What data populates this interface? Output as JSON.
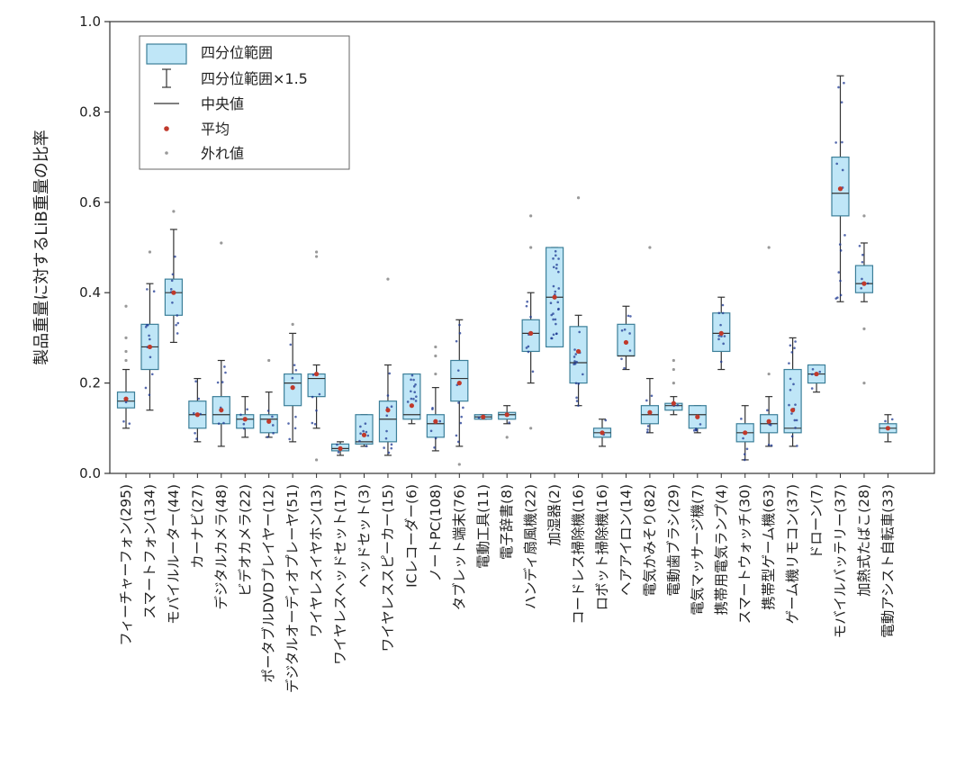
{
  "chart_data": {
    "type": "box",
    "ylabel": "製品重量に対するLiB重量の比率",
    "xlabel": "",
    "ylim": [
      0,
      1.0
    ],
    "yticks": [
      "0.0",
      "0.2",
      "0.4",
      "0.6",
      "0.8",
      "1.0"
    ],
    "grid": false,
    "legend_position": "top-left",
    "legend": [
      {
        "kind": "box",
        "label": "四分位範囲"
      },
      {
        "kind": "whisker",
        "label": "四分位範囲×1.5"
      },
      {
        "kind": "median",
        "label": "中央値"
      },
      {
        "kind": "mean",
        "label": "平均"
      },
      {
        "kind": "outlier",
        "label": "外れ値"
      }
    ],
    "colors": {
      "box_fill": "#bfe6f7",
      "box_edge": "#3c7f99",
      "mean": "#c0392b",
      "points": "#1f3a93",
      "outlier": "#999999"
    },
    "categories": [
      {
        "label": "フィーチャーフォン(295)",
        "whisker_low": 0.1,
        "q1": 0.145,
        "median": 0.16,
        "q3": 0.18,
        "whisker_high": 0.23,
        "mean": 0.165,
        "outliers": [
          0.25,
          0.27,
          0.3,
          0.37
        ]
      },
      {
        "label": "スマートフォン(134)",
        "whisker_low": 0.14,
        "q1": 0.23,
        "median": 0.28,
        "q3": 0.33,
        "whisker_high": 0.42,
        "mean": 0.28,
        "outliers": [
          0.49
        ]
      },
      {
        "label": "モバイルルーター(44)",
        "whisker_low": 0.29,
        "q1": 0.35,
        "median": 0.4,
        "q3": 0.43,
        "whisker_high": 0.54,
        "mean": 0.4,
        "outliers": [
          0.58
        ]
      },
      {
        "label": "カーナビ(27)",
        "whisker_low": 0.07,
        "q1": 0.1,
        "median": 0.13,
        "q3": 0.16,
        "whisker_high": 0.21,
        "mean": 0.13,
        "outliers": []
      },
      {
        "label": "デジタルカメラ(48)",
        "whisker_low": 0.06,
        "q1": 0.11,
        "median": 0.13,
        "q3": 0.17,
        "whisker_high": 0.25,
        "mean": 0.14,
        "outliers": [
          0.51
        ]
      },
      {
        "label": "ビデオカメラ(22)",
        "whisker_low": 0.08,
        "q1": 0.1,
        "median": 0.12,
        "q3": 0.13,
        "whisker_high": 0.17,
        "mean": 0.12,
        "outliers": []
      },
      {
        "label": "ポータブルDVDプレイヤー(12)",
        "whisker_low": 0.08,
        "q1": 0.09,
        "median": 0.12,
        "q3": 0.13,
        "whisker_high": 0.18,
        "mean": 0.115,
        "outliers": [
          0.25
        ]
      },
      {
        "label": "デジタルオーディオプレーヤ(51)",
        "whisker_low": 0.07,
        "q1": 0.15,
        "median": 0.2,
        "q3": 0.22,
        "whisker_high": 0.31,
        "mean": 0.19,
        "outliers": [
          0.33
        ]
      },
      {
        "label": "ワイヤレスイヤホン(13)",
        "whisker_low": 0.1,
        "q1": 0.17,
        "median": 0.21,
        "q3": 0.22,
        "whisker_high": 0.24,
        "mean": 0.22,
        "outliers": [
          0.03,
          0.48,
          0.49
        ]
      },
      {
        "label": "ワイヤレスヘッドセット(17)",
        "whisker_low": 0.04,
        "q1": 0.05,
        "median": 0.055,
        "q3": 0.065,
        "whisker_high": 0.07,
        "mean": 0.055,
        "outliers": []
      },
      {
        "label": "ヘッドセット(3)",
        "whisker_low": 0.06,
        "q1": 0.065,
        "median": 0.07,
        "q3": 0.13,
        "whisker_high": 0.13,
        "mean": 0.085,
        "outliers": []
      },
      {
        "label": "ワイヤレススピーカー(15)",
        "whisker_low": 0.04,
        "q1": 0.07,
        "median": 0.12,
        "q3": 0.16,
        "whisker_high": 0.24,
        "mean": 0.14,
        "outliers": [
          0.43
        ]
      },
      {
        "label": "ICレコーダー(6)",
        "whisker_low": 0.11,
        "q1": 0.12,
        "median": 0.13,
        "q3": 0.22,
        "whisker_high": 0.22,
        "mean": 0.15,
        "outliers": []
      },
      {
        "label": "ノートPC(108)",
        "whisker_low": 0.05,
        "q1": 0.08,
        "median": 0.11,
        "q3": 0.13,
        "whisker_high": 0.19,
        "mean": 0.115,
        "outliers": [
          0.22,
          0.26,
          0.28
        ]
      },
      {
        "label": "タブレット端末(76)",
        "whisker_low": 0.06,
        "q1": 0.16,
        "median": 0.21,
        "q3": 0.25,
        "whisker_high": 0.34,
        "mean": 0.2,
        "outliers": [
          0.02
        ]
      },
      {
        "label": "電動工具(11)",
        "whisker_low": 0.12,
        "q1": 0.12,
        "median": 0.125,
        "q3": 0.13,
        "whisker_high": 0.13,
        "mean": 0.125,
        "outliers": []
      },
      {
        "label": "電子辞書(8)",
        "whisker_low": 0.11,
        "q1": 0.12,
        "median": 0.13,
        "q3": 0.135,
        "whisker_high": 0.15,
        "mean": 0.13,
        "outliers": [
          0.08
        ]
      },
      {
        "label": "ハンディ扇風機(22)",
        "whisker_low": 0.2,
        "q1": 0.27,
        "median": 0.31,
        "q3": 0.34,
        "whisker_high": 0.4,
        "mean": 0.31,
        "outliers": [
          0.1,
          0.5,
          0.57
        ]
      },
      {
        "label": "加湿器(2)",
        "whisker_low": 0.28,
        "q1": 0.28,
        "median": 0.39,
        "q3": 0.5,
        "whisker_high": 0.5,
        "mean": 0.39,
        "outliers": []
      },
      {
        "label": "コードレス掃除機(16)",
        "whisker_low": 0.15,
        "q1": 0.2,
        "median": 0.245,
        "q3": 0.325,
        "whisker_high": 0.35,
        "mean": 0.27,
        "outliers": [
          0.61
        ]
      },
      {
        "label": "ロボット掃除機(16)",
        "whisker_low": 0.06,
        "q1": 0.08,
        "median": 0.09,
        "q3": 0.1,
        "whisker_high": 0.12,
        "mean": 0.09,
        "outliers": []
      },
      {
        "label": "ヘアアイロン(14)",
        "whisker_low": 0.23,
        "q1": 0.26,
        "median": 0.26,
        "q3": 0.33,
        "whisker_high": 0.37,
        "mean": 0.29,
        "outliers": []
      },
      {
        "label": "電気かみそり(82)",
        "whisker_low": 0.09,
        "q1": 0.11,
        "median": 0.13,
        "q3": 0.15,
        "whisker_high": 0.21,
        "mean": 0.135,
        "outliers": [
          0.5
        ]
      },
      {
        "label": "電動歯ブラシ(29)",
        "whisker_low": 0.13,
        "q1": 0.14,
        "median": 0.15,
        "q3": 0.155,
        "whisker_high": 0.17,
        "mean": 0.155,
        "outliers": [
          0.2,
          0.23,
          0.25
        ]
      },
      {
        "label": "電気マッサージ機(7)",
        "whisker_low": 0.09,
        "q1": 0.1,
        "median": 0.13,
        "q3": 0.15,
        "whisker_high": 0.15,
        "mean": 0.125,
        "outliers": []
      },
      {
        "label": "携帯用電気ランプ(4)",
        "whisker_low": 0.23,
        "q1": 0.27,
        "median": 0.31,
        "q3": 0.355,
        "whisker_high": 0.39,
        "mean": 0.31,
        "outliers": []
      },
      {
        "label": "スマートウォッチ(30)",
        "whisker_low": 0.03,
        "q1": 0.07,
        "median": 0.09,
        "q3": 0.11,
        "whisker_high": 0.15,
        "mean": 0.09,
        "outliers": []
      },
      {
        "label": "携帯型ゲーム機(63)",
        "whisker_low": 0.06,
        "q1": 0.09,
        "median": 0.11,
        "q3": 0.13,
        "whisker_high": 0.17,
        "mean": 0.115,
        "outliers": [
          0.22,
          0.5
        ]
      },
      {
        "label": "ゲーム機リモコン(37)",
        "whisker_low": 0.06,
        "q1": 0.09,
        "median": 0.1,
        "q3": 0.23,
        "whisker_high": 0.3,
        "mean": 0.14,
        "outliers": []
      },
      {
        "label": "ドローン(7)",
        "whisker_low": 0.18,
        "q1": 0.2,
        "median": 0.22,
        "q3": 0.24,
        "whisker_high": 0.24,
        "mean": 0.22,
        "outliers": []
      },
      {
        "label": "モバイルバッテリー(37)",
        "whisker_low": 0.38,
        "q1": 0.57,
        "median": 0.62,
        "q3": 0.7,
        "whisker_high": 0.88,
        "mean": 0.63,
        "outliers": []
      },
      {
        "label": "加熱式たばこ(28)",
        "whisker_low": 0.38,
        "q1": 0.4,
        "median": 0.42,
        "q3": 0.46,
        "whisker_high": 0.51,
        "mean": 0.42,
        "outliers": [
          0.2,
          0.32,
          0.57
        ]
      },
      {
        "label": "電動アシスト自転車(33)",
        "whisker_low": 0.07,
        "q1": 0.09,
        "median": 0.1,
        "q3": 0.11,
        "whisker_high": 0.13,
        "mean": 0.1,
        "outliers": []
      }
    ]
  }
}
